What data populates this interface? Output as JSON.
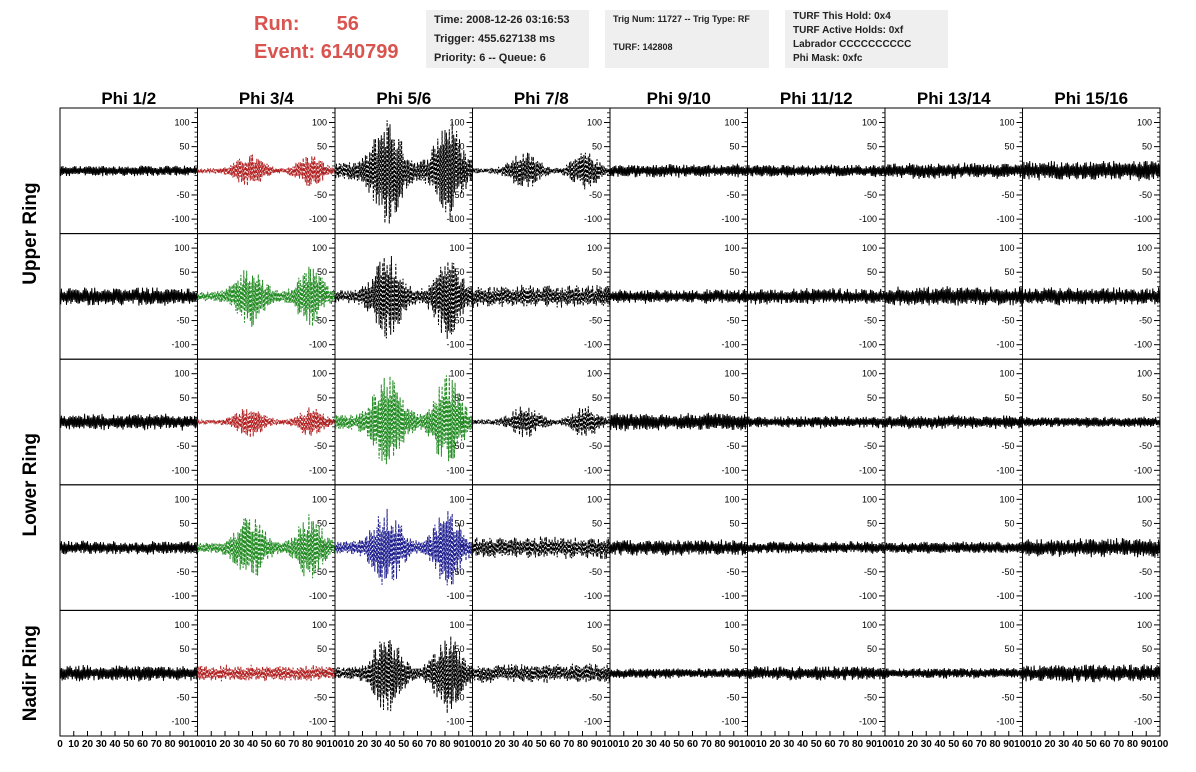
{
  "header": {
    "run_label": "Run:",
    "run_value": "56",
    "event_label": "Event:",
    "event_value": "6140799",
    "time_text": "Time: 2008-12-26 03:16:53",
    "trigger_text": "Trigger: 455.627138 ms",
    "priority_text": "Priority: 6 -- Queue: 6",
    "trig_text": "Trig Num: 11727 -- Trig Type: RF",
    "turf_text": "TURF: 142808",
    "turf_hold_text": "TURF This Hold: 0x4",
    "turf_active_text": "TURF Active Holds: 0xf",
    "labrador_text": "Labrador CCCCCCCCCC",
    "phi_mask_text": "Phi Mask: 0xfc"
  },
  "chart_data": {
    "type": "line",
    "title": "",
    "columns": [
      "Phi 1/2",
      "Phi 3/4",
      "Phi 5/6",
      "Phi 7/8",
      "Phi 9/10",
      "Phi 11/12",
      "Phi 13/14",
      "Phi 15/16"
    ],
    "rows": [
      "Upper Ring",
      "Upper Ring",
      "Lower Ring",
      "Lower Ring",
      "Nadir Ring"
    ],
    "row_labels": [
      {
        "text": "Upper Ring",
        "spans": [
          0,
          1
        ]
      },
      {
        "text": "Lower Ring",
        "spans": [
          2,
          3
        ]
      },
      {
        "text": "Nadir Ring",
        "spans": [
          4,
          4
        ]
      }
    ],
    "xlim": [
      0,
      100
    ],
    "ylim": [
      -130,
      130
    ],
    "xticks": [
      0,
      10,
      20,
      30,
      40,
      50,
      60,
      70,
      80,
      90,
      100
    ],
    "yticks": [
      100,
      50,
      0,
      -50,
      -100
    ],
    "colors": {
      "black": "#000000",
      "red": "#b22222",
      "green": "#228b22",
      "blue": "#1f1f8f"
    },
    "cells": [
      [
        {
          "amp": 12,
          "color": "black",
          "style": "solid"
        },
        {
          "amp": 35,
          "color": "red",
          "style": "dashed"
        },
        {
          "amp": 115,
          "color": "black",
          "style": "dashed"
        },
        {
          "amp": 40,
          "color": "black",
          "style": "dashed"
        },
        {
          "amp": 15,
          "color": "black",
          "style": "solid"
        },
        {
          "amp": 14,
          "color": "black",
          "style": "solid"
        },
        {
          "amp": 18,
          "color": "black",
          "style": "solid"
        },
        {
          "amp": 22,
          "color": "black",
          "style": "solid"
        }
      ],
      [
        {
          "amp": 20,
          "color": "black",
          "style": "solid"
        },
        {
          "amp": 65,
          "color": "green",
          "style": "dashed"
        },
        {
          "amp": 90,
          "color": "black",
          "style": "dashed"
        },
        {
          "amp": 25,
          "color": "black",
          "style": "dashed"
        },
        {
          "amp": 16,
          "color": "black",
          "style": "solid"
        },
        {
          "amp": 18,
          "color": "black",
          "style": "solid"
        },
        {
          "amp": 22,
          "color": "black",
          "style": "solid"
        },
        {
          "amp": 20,
          "color": "black",
          "style": "solid"
        }
      ],
      [
        {
          "amp": 18,
          "color": "black",
          "style": "solid"
        },
        {
          "amp": 32,
          "color": "red",
          "style": "dashed"
        },
        {
          "amp": 100,
          "color": "green",
          "style": "dashed"
        },
        {
          "amp": 35,
          "color": "black",
          "style": "dashed"
        },
        {
          "amp": 20,
          "color": "black",
          "style": "solid"
        },
        {
          "amp": 14,
          "color": "black",
          "style": "solid"
        },
        {
          "amp": 16,
          "color": "black",
          "style": "solid"
        },
        {
          "amp": 12,
          "color": "black",
          "style": "solid"
        }
      ],
      [
        {
          "amp": 15,
          "color": "black",
          "style": "solid"
        },
        {
          "amp": 70,
          "color": "green",
          "style": "dashed"
        },
        {
          "amp": 85,
          "color": "blue",
          "style": "dashed"
        },
        {
          "amp": 25,
          "color": "black",
          "style": "dashed"
        },
        {
          "amp": 18,
          "color": "black",
          "style": "solid"
        },
        {
          "amp": 14,
          "color": "black",
          "style": "solid"
        },
        {
          "amp": 14,
          "color": "black",
          "style": "solid"
        },
        {
          "amp": 22,
          "color": "black",
          "style": "solid"
        }
      ],
      [
        {
          "amp": 18,
          "color": "black",
          "style": "solid"
        },
        {
          "amp": 18,
          "color": "red",
          "style": "dashed"
        },
        {
          "amp": 85,
          "color": "black",
          "style": "dashed"
        },
        {
          "amp": 22,
          "color": "black",
          "style": "dashed"
        },
        {
          "amp": 12,
          "color": "black",
          "style": "solid"
        },
        {
          "amp": 16,
          "color": "black",
          "style": "solid"
        },
        {
          "amp": 12,
          "color": "black",
          "style": "solid"
        },
        {
          "amp": 20,
          "color": "black",
          "style": "solid"
        }
      ]
    ]
  }
}
